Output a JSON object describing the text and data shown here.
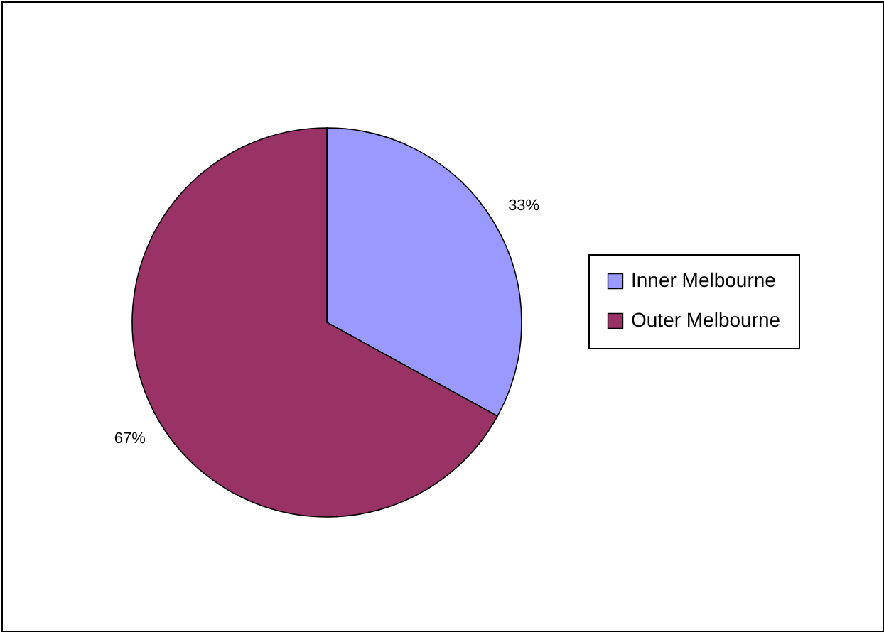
{
  "chart_data": {
    "type": "pie",
    "categories": [
      "Inner Melbourne",
      "Outer Melbourne"
    ],
    "values": [
      33,
      67
    ],
    "colors": [
      "#9999ff",
      "#993366"
    ],
    "value_labels": [
      "33%",
      "67%"
    ],
    "legend": "right"
  }
}
